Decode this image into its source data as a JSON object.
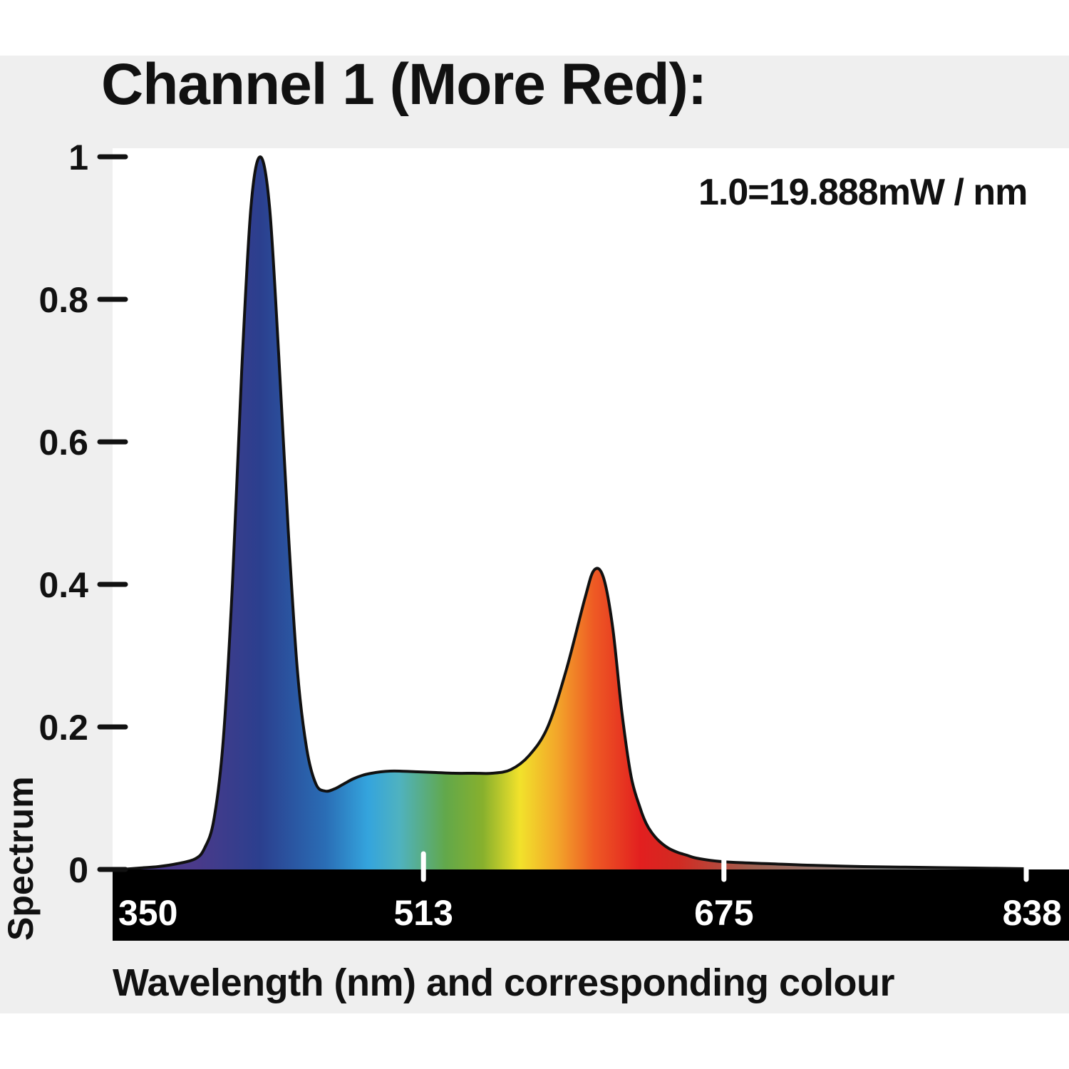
{
  "chart_data": {
    "type": "area",
    "title": "Channel 1 (More Red):",
    "annotation": "1.0=19.888mW / nm",
    "xlabel": "Wavelength (nm) and corresponding colour",
    "ylabel": "Spectrum",
    "xlim": [
      350,
      838
    ],
    "ylim": [
      0,
      1
    ],
    "x_ticks": [
      "350",
      "513",
      "675",
      "838"
    ],
    "y_ticks": [
      "0",
      "0.2",
      "0.4",
      "0.6",
      "0.8",
      "1"
    ],
    "grid": false,
    "series": [
      {
        "x": [
          350,
          360,
          370,
          380,
          390,
          395,
          400,
          405,
          410,
          415,
          420,
          425,
          430,
          435,
          440,
          445,
          450,
          455,
          460,
          465,
          470,
          475,
          480,
          485,
          490,
          495,
          500,
          510,
          520,
          530,
          540,
          550,
          560,
          570,
          580,
          590,
          600,
          605,
          610,
          615,
          620,
          625,
          630,
          633,
          636,
          640,
          645,
          650,
          655,
          660,
          670,
          680,
          700,
          720,
          750,
          780,
          810,
          838
        ],
        "y": [
          0.0,
          0.002,
          0.004,
          0.008,
          0.015,
          0.03,
          0.07,
          0.18,
          0.4,
          0.7,
          0.93,
          1.0,
          0.93,
          0.72,
          0.48,
          0.28,
          0.17,
          0.12,
          0.11,
          0.113,
          0.12,
          0.127,
          0.132,
          0.135,
          0.137,
          0.138,
          0.138,
          0.137,
          0.136,
          0.135,
          0.135,
          0.135,
          0.14,
          0.16,
          0.2,
          0.28,
          0.38,
          0.42,
          0.41,
          0.34,
          0.22,
          0.13,
          0.085,
          0.065,
          0.052,
          0.04,
          0.03,
          0.024,
          0.02,
          0.016,
          0.012,
          0.01,
          0.008,
          0.006,
          0.004,
          0.003,
          0.002,
          0.001
        ]
      }
    ],
    "colors": {
      "axis_bar": "#000000",
      "outline": "#111111",
      "spectrum_stops": [
        {
          "nm": 390,
          "color": "#4a3a8a"
        },
        {
          "nm": 425,
          "color": "#2b3f8e"
        },
        {
          "nm": 460,
          "color": "#2a6db5"
        },
        {
          "nm": 483,
          "color": "#34a4dd"
        },
        {
          "nm": 500,
          "color": "#4fb2c0"
        },
        {
          "nm": 525,
          "color": "#62a84a"
        },
        {
          "nm": 545,
          "color": "#87b02d"
        },
        {
          "nm": 565,
          "color": "#f2e22b"
        },
        {
          "nm": 585,
          "color": "#f3a62a"
        },
        {
          "nm": 605,
          "color": "#ee5a24"
        },
        {
          "nm": 630,
          "color": "#e21f1f"
        },
        {
          "nm": 650,
          "color": "#d22a22"
        },
        {
          "nm": 690,
          "color": "#a06050"
        },
        {
          "nm": 760,
          "color": "#8c8c8c"
        },
        {
          "nm": 838,
          "color": "#888888"
        }
      ]
    }
  }
}
